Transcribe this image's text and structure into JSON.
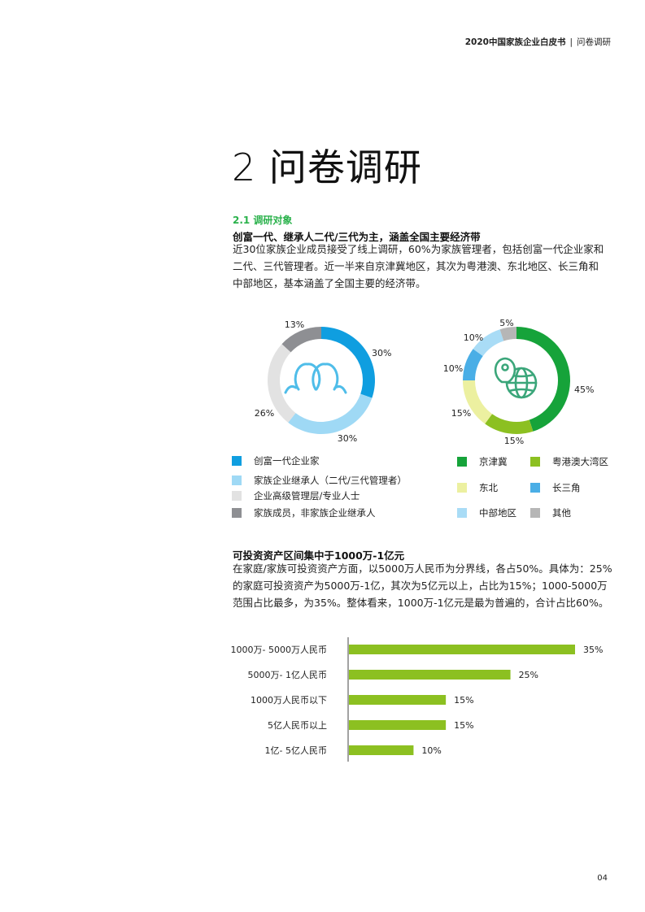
{
  "header": {
    "left": "2020中国家族企业白皮书",
    "sep": "|",
    "right": "问卷调研"
  },
  "title": "2 问卷调研",
  "section": {
    "label": "2.1 调研对象",
    "heading": "创富一代、继承人二代/三代为主，涵盖全国主要经济带",
    "para_lines": [
      "近30位家族企业成员接受了线上调研，60%为家族管理者，包括创富一代企业家和",
      "二代、三代管理者。近一半来自京津冀地区，其次为粤港澳、东北地区、长三角和",
      "中部地区，基本涵盖了全国主要的经济带。"
    ]
  },
  "donut_left": {
    "icon": "people-icon",
    "slices": [
      {
        "label": "创富一代企业家",
        "value": 30,
        "display": "30%",
        "color": "#0f9ee0"
      },
      {
        "label": "家族企业继承人（二代/三代管理者）",
        "value": 30,
        "display": "30%",
        "color": "#9fd9f5"
      },
      {
        "label": "企业高级管理层/专业人士",
        "value": 26,
        "display": "26%",
        "color": "#e2e2e2"
      },
      {
        "label": "家族成员，非家族企业继承人",
        "value": 13,
        "display": "13%",
        "color": "#8e8f93"
      }
    ]
  },
  "donut_right": {
    "icon": "globe-location-icon",
    "slices": [
      {
        "label": "京津冀",
        "value": 45,
        "display": "45%",
        "color": "#16a33a"
      },
      {
        "label": "粤港澳大湾区",
        "value": 15,
        "display": "15%",
        "color": "#8cc021"
      },
      {
        "label": "东北",
        "value": 15,
        "display": "15%",
        "color": "#ecf0a0"
      },
      {
        "label": "长三角",
        "value": 10,
        "display": "10%",
        "color": "#4aaee6"
      },
      {
        "label": "中部地区",
        "value": 10,
        "display": "10%",
        "color": "#a9dcf6"
      },
      {
        "label": "其他",
        "value": 5,
        "display": "5%",
        "color": "#b6b6b6"
      }
    ]
  },
  "section2": {
    "heading": "可投资资产区间集中于1000万-1亿元",
    "para_lines": [
      "在家庭/家族可投资资产方面，以5000万人民币为分界线，各占50%。具体为：25%",
      "的家庭可投资资产为5000万-1亿，其次为5亿元以上，占比为15%；1000-5000万",
      "范围占比最多，为35%。整体看来，1000万-1亿元是最为普遍的，合计占比60%。"
    ]
  },
  "chart_data": [
    {
      "type": "pie",
      "title": "",
      "categories": [
        "创富一代企业家",
        "家族企业继承人（二代/三代管理者）",
        "企业高级管理层/专业人士",
        "家族成员，非家族企业继承人"
      ],
      "values": [
        30,
        30,
        26,
        13
      ],
      "legend": "bottom"
    },
    {
      "type": "pie",
      "title": "",
      "categories": [
        "京津冀",
        "粤港澳大湾区",
        "东北",
        "长三角",
        "中部地区",
        "其他"
      ],
      "values": [
        45,
        15,
        15,
        10,
        10,
        5
      ],
      "legend": "bottom"
    },
    {
      "type": "bar",
      "orientation": "horizontal",
      "title": "",
      "categories": [
        "1000万- 5000万人民币",
        "5000万- 1亿人民币",
        "1000万人民币以下",
        "5亿人民币以上",
        "1亿- 5亿人民币"
      ],
      "values": [
        35,
        25,
        15,
        15,
        10
      ],
      "labels": [
        "35%",
        "25%",
        "15%",
        "15%",
        "10%"
      ],
      "color": "#8cc021",
      "xlim": [
        0,
        35
      ]
    }
  ],
  "page_number": "04"
}
